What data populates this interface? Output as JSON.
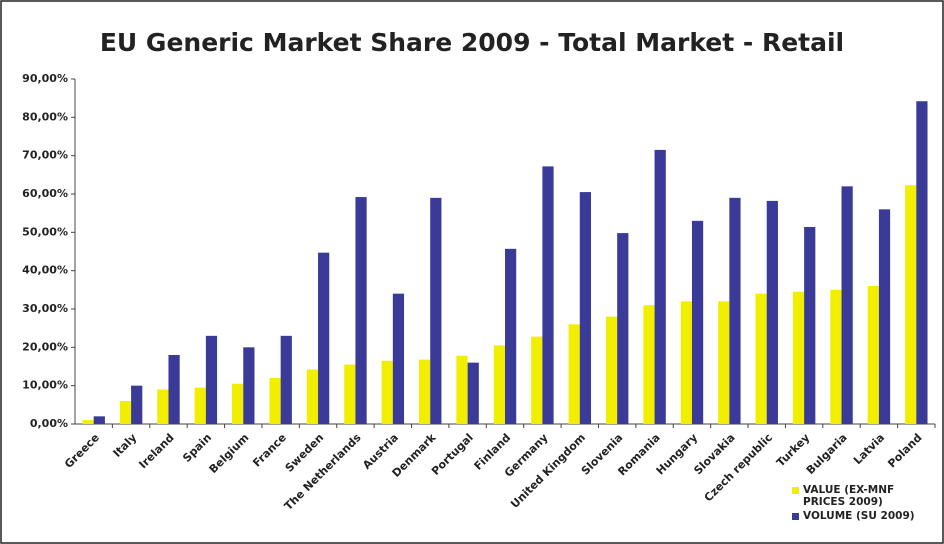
{
  "chart_data": {
    "type": "bar",
    "title": "EU Generic Market Share 2009 - Total Market - Retail",
    "categories": [
      "Greece",
      "Italy",
      "Ireland",
      "Spain",
      "Belgium",
      "France",
      "Sweden",
      "The Netherlands",
      "Austria",
      "Denmark",
      "Portugal",
      "Finland",
      "Germany",
      "United Kingdom",
      "Slovenia",
      "Romania",
      "Hungary",
      "Slovakia",
      "Czech republic",
      "Turkey",
      "Bulgaria",
      "Latvia",
      "Poland"
    ],
    "series": [
      {
        "name": "VALUE (EX-MNF PRICES 2009)",
        "color": "#f2ee00",
        "values": [
          1.0,
          6.0,
          9.0,
          9.5,
          10.5,
          12.0,
          14.2,
          15.5,
          16.5,
          16.8,
          17.8,
          20.5,
          22.8,
          26.0,
          28.0,
          31.0,
          32.0,
          32.0,
          34.0,
          34.5,
          35.0,
          36.0,
          62.3
        ]
      },
      {
        "name": "VOLUME (SU 2009)",
        "color": "#3a3a98",
        "values": [
          2.0,
          10.0,
          18.0,
          23.0,
          20.0,
          23.0,
          44.7,
          59.2,
          34.0,
          59.0,
          16.0,
          45.7,
          67.2,
          60.5,
          49.8,
          71.5,
          53.0,
          59.0,
          58.2,
          51.4,
          62.0,
          56.0,
          84.2
        ]
      }
    ],
    "ylim": [
      0,
      90
    ],
    "yticks": [
      {
        "value": 0,
        "label": "0,00%"
      },
      {
        "value": 10,
        "label": "10,00%"
      },
      {
        "value": 20,
        "label": "20,00%"
      },
      {
        "value": 30,
        "label": "30,00%"
      },
      {
        "value": 40,
        "label": "40,00%"
      },
      {
        "value": 50,
        "label": "50,00%"
      },
      {
        "value": 60,
        "label": "60,00%"
      },
      {
        "value": 70,
        "label": "70,00%"
      },
      {
        "value": 80,
        "label": "80,00%"
      },
      {
        "value": 90,
        "label": "90,00%"
      }
    ],
    "grid": false,
    "legend": "bottom-right"
  }
}
